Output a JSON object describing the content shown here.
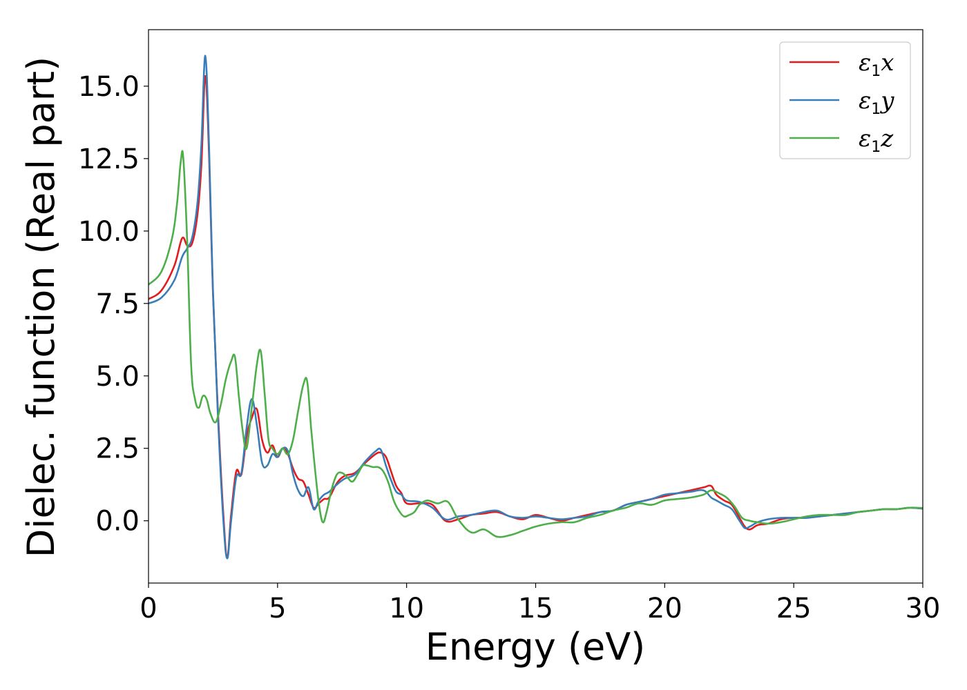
{
  "chart_data": {
    "type": "line",
    "title": "",
    "xlabel": "Energy (eV)",
    "ylabel": "Dielec. function (Real part)",
    "xlim": [
      0,
      30
    ],
    "ylim": [
      -2.15,
      16.95
    ],
    "xticks": [
      0,
      5,
      10,
      15,
      20,
      25,
      30
    ],
    "xtick_labels": [
      "0",
      "5",
      "10",
      "15",
      "20",
      "25",
      "30"
    ],
    "yticks": [
      0.0,
      2.5,
      5.0,
      7.5,
      10.0,
      12.5,
      15.0
    ],
    "ytick_labels": [
      "0.0",
      "2.5",
      "5.0",
      "7.5",
      "10.0",
      "12.5",
      "15.0"
    ],
    "grid": false,
    "legend": "top-right",
    "series": [
      {
        "name": "ε1x",
        "legend_base": "ε",
        "legend_sub": "1",
        "legend_tail": "x",
        "color": "#e41a1c",
        "x": [
          0,
          0.5,
          1.0,
          1.3,
          1.5,
          1.7,
          1.9,
          2.05,
          2.2,
          2.35,
          2.5,
          2.7,
          2.9,
          3.05,
          3.2,
          3.4,
          3.6,
          3.8,
          4.0,
          4.2,
          4.4,
          4.6,
          4.8,
          5.0,
          5.2,
          5.4,
          5.6,
          5.8,
          6.0,
          6.2,
          6.4,
          6.6,
          6.8,
          7.0,
          7.3,
          7.6,
          8.0,
          8.4,
          8.8,
          9.0,
          9.2,
          9.4,
          9.6,
          9.8,
          10.0,
          10.5,
          11.0,
          11.5,
          12.0,
          12.5,
          13.0,
          13.5,
          14.0,
          14.5,
          15.0,
          15.5,
          16.0,
          16.5,
          17.0,
          17.5,
          18.0,
          18.5,
          19.0,
          19.5,
          20.0,
          20.5,
          21.0,
          21.5,
          21.8,
          22.0,
          22.3,
          22.6,
          22.9,
          23.1,
          23.3,
          23.6,
          24.0,
          24.5,
          25.0,
          25.5,
          26.0,
          26.5,
          27.0,
          27.5,
          28.0,
          28.5,
          29.0,
          29.5,
          30.0
        ],
        "y": [
          7.65,
          7.95,
          8.8,
          9.75,
          9.5,
          9.6,
          10.6,
          12.3,
          15.35,
          12.5,
          7.8,
          3.6,
          0.2,
          -1.25,
          0.2,
          1.7,
          1.6,
          2.9,
          3.55,
          3.85,
          2.8,
          2.35,
          2.6,
          2.2,
          2.5,
          2.3,
          1.8,
          1.45,
          1.35,
          0.9,
          0.45,
          0.6,
          0.75,
          0.8,
          1.3,
          1.55,
          1.65,
          2.0,
          2.3,
          2.35,
          2.2,
          1.7,
          1.2,
          0.95,
          0.6,
          0.6,
          0.55,
          0.0,
          0.05,
          0.2,
          0.25,
          0.3,
          0.15,
          0.05,
          0.2,
          0.1,
          0.0,
          0.1,
          0.2,
          0.3,
          0.35,
          0.55,
          0.65,
          0.75,
          0.85,
          0.95,
          1.05,
          1.15,
          1.2,
          0.9,
          0.7,
          0.55,
          0.1,
          -0.2,
          -0.3,
          -0.15,
          -0.1,
          0.05,
          0.1,
          0.1,
          0.15,
          0.2,
          0.25,
          0.3,
          0.35,
          0.4,
          0.4,
          0.45,
          0.42
        ]
      },
      {
        "name": "ε1y",
        "legend_base": "ε",
        "legend_sub": "1",
        "legend_tail": "y",
        "color": "#377eb8",
        "x": [
          0,
          0.5,
          1.0,
          1.3,
          1.5,
          1.7,
          1.9,
          2.05,
          2.2,
          2.35,
          2.5,
          2.7,
          2.9,
          3.05,
          3.2,
          3.4,
          3.6,
          3.8,
          4.0,
          4.2,
          4.4,
          4.6,
          4.8,
          5.0,
          5.2,
          5.4,
          5.6,
          5.8,
          6.0,
          6.2,
          6.4,
          6.6,
          6.8,
          7.0,
          7.3,
          7.6,
          8.0,
          8.4,
          8.8,
          9.0,
          9.2,
          9.4,
          9.6,
          9.8,
          10.0,
          10.5,
          11.0,
          11.5,
          12.0,
          12.5,
          13.0,
          13.5,
          14.0,
          14.5,
          15.0,
          15.5,
          16.0,
          16.5,
          17.0,
          17.5,
          18.0,
          18.5,
          19.0,
          19.5,
          20.0,
          20.5,
          21.0,
          21.5,
          21.8,
          22.0,
          22.3,
          22.6,
          22.9,
          23.1,
          23.3,
          23.6,
          24.0,
          24.5,
          25.0,
          25.5,
          26.0,
          26.5,
          27.0,
          27.5,
          28.0,
          28.5,
          29.0,
          29.5,
          30.0
        ],
        "y": [
          7.5,
          7.7,
          8.3,
          9.1,
          9.4,
          9.8,
          11.0,
          13.0,
          16.05,
          12.8,
          7.9,
          3.4,
          0.0,
          -1.3,
          0.0,
          1.5,
          1.65,
          3.2,
          4.2,
          3.3,
          2.0,
          1.9,
          2.3,
          2.2,
          2.5,
          2.4,
          1.6,
          1.05,
          0.85,
          1.15,
          0.4,
          0.7,
          0.9,
          1.0,
          1.25,
          1.45,
          1.6,
          2.05,
          2.4,
          2.45,
          1.9,
          1.4,
          1.0,
          0.9,
          0.7,
          0.65,
          0.45,
          0.05,
          0.15,
          0.2,
          0.3,
          0.35,
          0.15,
          0.1,
          0.15,
          0.1,
          0.05,
          0.1,
          0.15,
          0.3,
          0.35,
          0.55,
          0.65,
          0.75,
          0.9,
          0.95,
          1.0,
          1.05,
          0.8,
          0.7,
          0.55,
          0.4,
          0.0,
          -0.25,
          -0.2,
          -0.05,
          0.05,
          0.1,
          0.1,
          0.1,
          0.15,
          0.2,
          0.25,
          0.3,
          0.35,
          0.4,
          0.4,
          0.45,
          0.42
        ]
      },
      {
        "name": "ε1z",
        "legend_base": "ε",
        "legend_sub": "1",
        "legend_tail": "z",
        "color": "#4daf4a",
        "x": [
          0,
          0.5,
          0.9,
          1.1,
          1.25,
          1.35,
          1.5,
          1.65,
          1.8,
          1.95,
          2.1,
          2.25,
          2.4,
          2.6,
          2.8,
          3.0,
          3.2,
          3.35,
          3.5,
          3.65,
          3.8,
          4.0,
          4.2,
          4.35,
          4.5,
          4.65,
          4.8,
          5.0,
          5.2,
          5.4,
          5.6,
          5.8,
          6.0,
          6.15,
          6.3,
          6.45,
          6.6,
          6.75,
          6.9,
          7.1,
          7.3,
          7.5,
          7.7,
          7.9,
          8.1,
          8.3,
          8.5,
          8.7,
          8.9,
          9.1,
          9.3,
          9.5,
          9.7,
          9.9,
          10.1,
          10.3,
          10.5,
          10.8,
          11.2,
          11.6,
          12.0,
          12.5,
          13.0,
          13.5,
          14.0,
          14.5,
          15.0,
          15.5,
          16.0,
          16.5,
          17.0,
          17.5,
          18.0,
          18.5,
          19.0,
          19.5,
          20.0,
          20.5,
          21.0,
          21.5,
          21.8,
          22.1,
          22.4,
          22.7,
          23.0,
          23.3,
          23.6,
          24.0,
          24.5,
          25.0,
          25.5,
          26.0,
          26.5,
          27.0,
          27.5,
          28.0,
          28.5,
          29.0,
          29.5,
          30.0
        ],
        "y": [
          8.15,
          8.6,
          9.7,
          10.9,
          12.4,
          12.5,
          9.6,
          5.4,
          4.2,
          3.9,
          4.3,
          4.2,
          3.7,
          3.4,
          4.0,
          4.9,
          5.5,
          5.65,
          4.3,
          3.1,
          2.5,
          3.9,
          5.4,
          5.85,
          4.4,
          2.8,
          2.5,
          2.3,
          2.5,
          2.3,
          2.8,
          3.8,
          4.7,
          4.8,
          3.2,
          1.8,
          0.6,
          -0.05,
          0.3,
          1.1,
          1.6,
          1.65,
          1.5,
          1.35,
          1.6,
          1.9,
          1.9,
          1.85,
          1.85,
          1.7,
          1.3,
          0.7,
          0.35,
          0.15,
          0.2,
          0.3,
          0.55,
          0.7,
          0.6,
          0.65,
          0.05,
          -0.4,
          -0.3,
          -0.55,
          -0.5,
          -0.35,
          -0.2,
          -0.1,
          -0.05,
          -0.05,
          0.1,
          0.2,
          0.35,
          0.45,
          0.6,
          0.55,
          0.7,
          0.75,
          0.8,
          0.9,
          1.05,
          0.95,
          0.8,
          0.5,
          0.1,
          0.0,
          -0.05,
          -0.1,
          -0.05,
          0.05,
          0.15,
          0.2,
          0.2,
          0.2,
          0.3,
          0.35,
          0.4,
          0.4,
          0.45,
          0.44
        ]
      }
    ]
  }
}
